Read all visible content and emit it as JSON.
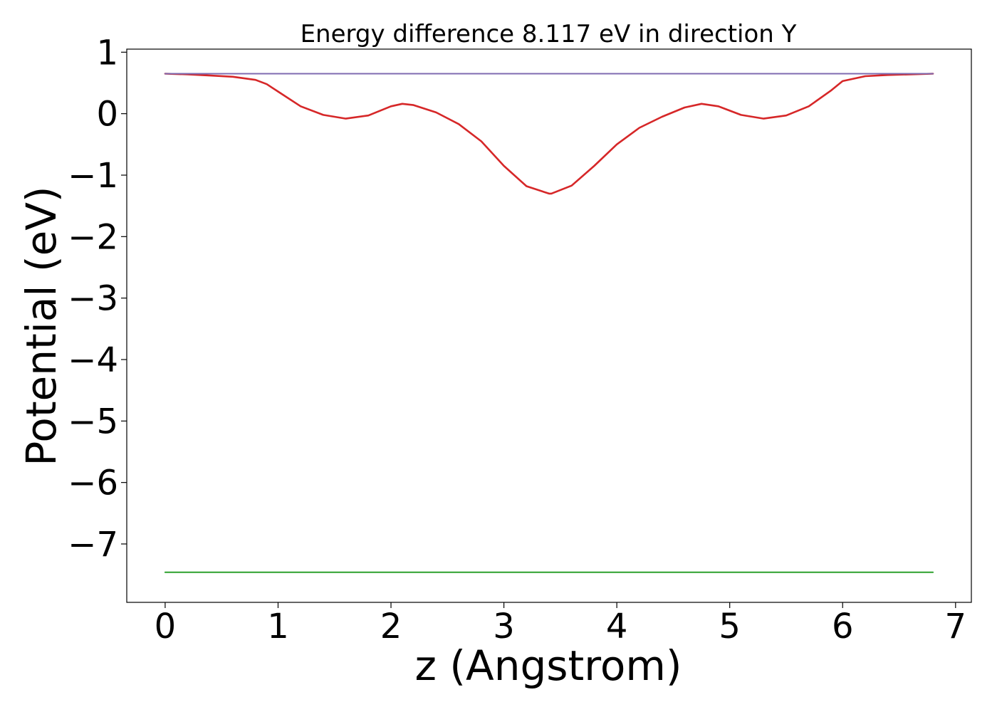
{
  "chart_data": {
    "type": "line",
    "title": "Energy difference 8.117 eV in direction Y",
    "xlabel": "z (Angstrom)",
    "ylabel": "Potential (eV)",
    "xlim": [
      -0.34,
      7.14
    ],
    "ylim": [
      -7.95,
      1.05
    ],
    "x_ticks": [
      0,
      1,
      2,
      3,
      4,
      5,
      6,
      7
    ],
    "x_tick_labels": [
      "0",
      "1",
      "2",
      "3",
      "4",
      "5",
      "6",
      "7"
    ],
    "y_ticks": [
      1,
      0,
      -1,
      -2,
      -3,
      -4,
      -5,
      -6,
      -7
    ],
    "y_tick_labels": [
      "1",
      "0",
      "−1",
      "−2",
      "−3",
      "−4",
      "−5",
      "−6",
      "−7"
    ],
    "grid": false,
    "series": [
      {
        "color": "#1f77b4",
        "x": [
          0,
          6.8
        ],
        "y": [
          0.65,
          0.65
        ]
      },
      {
        "color": "#2ca02c",
        "x": [
          0,
          6.8
        ],
        "y": [
          -7.46,
          -7.46
        ]
      },
      {
        "color": "#d62728",
        "x": [
          0,
          0.2,
          0.4,
          0.6,
          0.8,
          0.9,
          1.0,
          1.2,
          1.4,
          1.6,
          1.8,
          2.0,
          2.1,
          2.2,
          2.4,
          2.6,
          2.8,
          3.0,
          3.2,
          3.4,
          3.42,
          3.6,
          3.8,
          4.0,
          4.2,
          4.4,
          4.6,
          4.75,
          4.9,
          5.1,
          5.3,
          5.5,
          5.7,
          5.9,
          6.0,
          6.2,
          6.4,
          6.6,
          6.8
        ],
        "y": [
          0.65,
          0.64,
          0.62,
          0.6,
          0.55,
          0.48,
          0.36,
          0.12,
          -0.02,
          -0.08,
          -0.03,
          0.12,
          0.16,
          0.14,
          0.02,
          -0.17,
          -0.45,
          -0.85,
          -1.18,
          -1.3,
          -1.3,
          -1.17,
          -0.85,
          -0.5,
          -0.23,
          -0.05,
          0.1,
          0.16,
          0.12,
          -0.02,
          -0.08,
          -0.03,
          0.12,
          0.38,
          0.53,
          0.61,
          0.63,
          0.64,
          0.65
        ]
      },
      {
        "color": "#7f6bb0",
        "x": [
          0,
          6.8
        ],
        "y": [
          0.65,
          0.65
        ]
      }
    ]
  }
}
